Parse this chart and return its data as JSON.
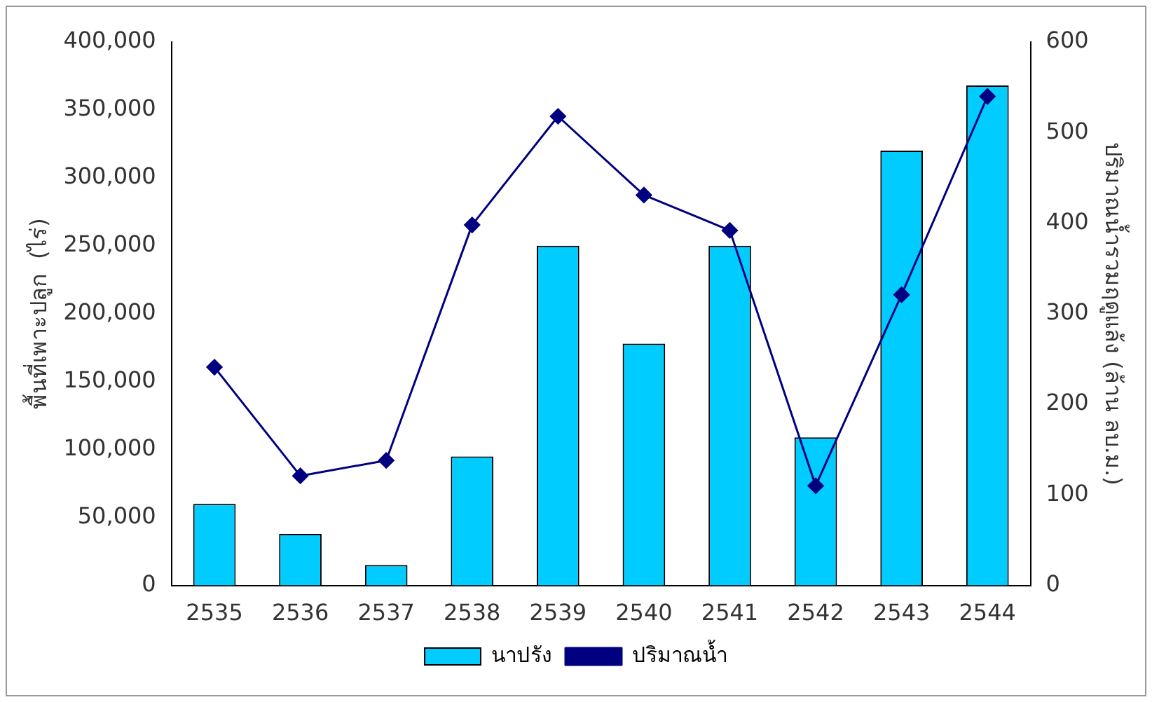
{
  "chart_data": {
    "type": "bar",
    "categories": [
      "2535",
      "2536",
      "2537",
      "2538",
      "2539",
      "2540",
      "2541",
      "2542",
      "2543",
      "2544"
    ],
    "series": [
      {
        "name": "นาปรัง",
        "color": "#00ccff",
        "values": [
          60000,
          38000,
          15000,
          95000,
          250000,
          178000,
          250000,
          109000,
          320000,
          368000
        ]
      },
      {
        "name": "ปริมาณน้ำ",
        "type": "line",
        "axis": "y2",
        "color": "#000080",
        "marker": "diamond",
        "values": [
          241,
          121,
          138,
          398,
          518,
          431,
          392,
          110,
          321,
          540
        ]
      }
    ],
    "ylabel": "พื้นที่เพาะปลูก  (ไร่)",
    "y2label": "ปริมาณน้ำรวมฤดูแล้ง (ล้าน ลบ.ม.)",
    "ylim": [
      0,
      400000
    ],
    "yticks": [
      0,
      {
        "value": 50000,
        "label": "50,000"
      },
      {
        "value": 100000,
        "label": "100,000"
      },
      {
        "value": 150000,
        "label": "150,000"
      },
      {
        "value": 200000,
        "label": "200,000"
      },
      {
        "value": 250000,
        "label": "250,000"
      },
      {
        "value": 300000,
        "label": "300,000"
      },
      {
        "value": 350000,
        "label": "350,000"
      },
      {
        "value": 400000,
        "label": "400,000"
      }
    ],
    "y2lim": [
      0,
      600
    ],
    "y2ticks": [
      0,
      100,
      200,
      300,
      400,
      500,
      600
    ],
    "grid": false,
    "legend": "bottom"
  }
}
